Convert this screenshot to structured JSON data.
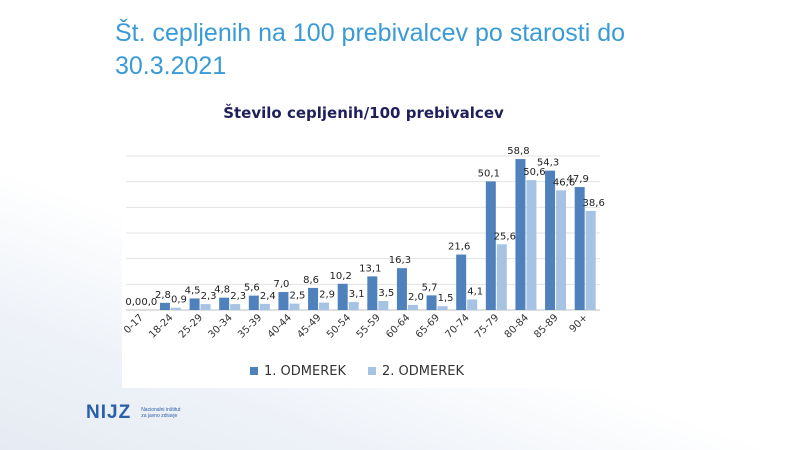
{
  "slide": {
    "title_line1": "Št. cepljenih na 100 prebivalcev po starosti do",
    "title_line2": "30.3.2021"
  },
  "chart_data": {
    "type": "bar",
    "title": "Število cepljenih/100 prebivalcev",
    "categories": [
      "0-17",
      "18-24",
      "25-29",
      "30-34",
      "35-39",
      "40-44",
      "45-49",
      "50-54",
      "55-59",
      "60-64",
      "65-69",
      "70-74",
      "75-79",
      "80-84",
      "85-89",
      "90+"
    ],
    "series": [
      {
        "name": "1. ODMEREK",
        "color": "#4f81bd",
        "values": [
          0.0,
          2.8,
          4.5,
          4.8,
          5.6,
          7.0,
          8.6,
          10.2,
          13.1,
          16.3,
          5.7,
          21.6,
          50.1,
          58.8,
          54.3,
          47.9
        ]
      },
      {
        "name": "2. ODMEREK",
        "color": "#a7c3e4",
        "values": [
          0.0,
          0.9,
          2.3,
          2.3,
          2.4,
          2.5,
          2.9,
          3.1,
          3.5,
          2.0,
          1.5,
          4.1,
          25.6,
          50.6,
          46.6,
          38.6
        ]
      }
    ],
    "labels_1": [
      "0,0",
      "2,8",
      "4,5",
      "4,8",
      "5,6",
      "7,0",
      "8,6",
      "10,2",
      "13,1",
      "16,3",
      "5,7",
      "21,6",
      "50,1",
      "58,8",
      "54,3",
      "47,9"
    ],
    "labels_2": [
      "0,0",
      "0,9",
      "2,3",
      "2,3",
      "2,4",
      "2,5",
      "2,9",
      "3,1",
      "3,5",
      "2,0",
      "1,5",
      "4,1",
      "25,6",
      "50,6",
      "46,6",
      "38,6"
    ],
    "ylim": [
      0,
      60
    ],
    "grid": true,
    "legend": "bottom"
  },
  "logo": {
    "brand": "NIJZ",
    "subtitle_1": "Nacionalni inštitut",
    "subtitle_2": "za javno zdravje"
  }
}
